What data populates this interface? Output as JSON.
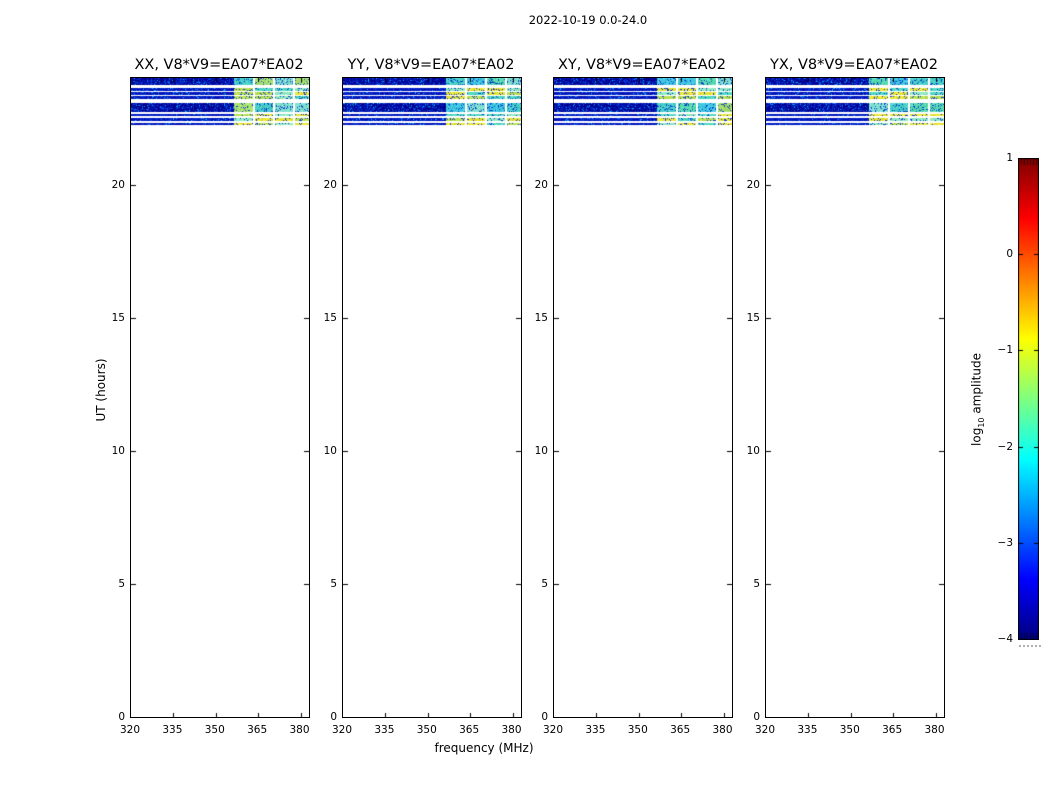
{
  "title": "2022-10-19 0.0-24.0",
  "xlabel": "frequency (MHz)",
  "ylabel": "UT (hours)",
  "colorbar": {
    "label_prefix": "log",
    "label_sub": "10",
    "label_suffix": " amplitude",
    "ticks": [
      "1",
      "0",
      "−1",
      "−2",
      "−3",
      "−4"
    ],
    "tick_values": [
      1,
      0,
      -1,
      -2,
      -3,
      -4
    ],
    "vmin": -4,
    "vmax": 1,
    "colormap": "jet"
  },
  "chart_data": {
    "type": "heatmap",
    "description": "Four dynamic-spectrum (frequency vs UT) waterfall panels of visibility amplitude for baseline V8*V9=EA07*EA02, one per polarization product; data present only near UT 22.2-24.0 as horizontal bands; enhanced amplitude patches above ~357 MHz.",
    "panels": [
      {
        "id": "xx",
        "label": "XX, V8*V9=EA07*EA02"
      },
      {
        "id": "yy",
        "label": "YY, V8*V9=EA07*EA02"
      },
      {
        "id": "xy",
        "label": "XY, V8*V9=EA07*EA02"
      },
      {
        "id": "yx",
        "label": "YX, V8*V9=EA07*EA02"
      }
    ],
    "x": {
      "label": "frequency (MHz)",
      "min": 320,
      "max": 383,
      "ticks": [
        320,
        335,
        350,
        365,
        380
      ]
    },
    "y": {
      "label": "UT (hours)",
      "min": 0,
      "max": 24,
      "ticks": [
        0,
        5,
        10,
        15,
        20
      ]
    },
    "color_axis": {
      "label": "log10 amplitude",
      "min": -4,
      "max": 1,
      "ticks": [
        1,
        0,
        -1,
        -2,
        -3,
        -4
      ],
      "colormap": "jet"
    },
    "background_log10_amp_range": [
      -4.0,
      -3.0
    ],
    "enhanced_log10_amp_range": [
      -2.2,
      -1.1
    ],
    "bands": [
      {
        "ut_start": 23.74,
        "ut_end": 24.0,
        "kind": "thick"
      },
      {
        "ut_start": 23.53,
        "ut_end": 23.61,
        "kind": "line"
      },
      {
        "ut_start": 23.36,
        "ut_end": 23.48,
        "kind": "line"
      },
      {
        "ut_start": 23.22,
        "ut_end": 23.31,
        "kind": "line"
      },
      {
        "ut_start": 22.71,
        "ut_end": 23.05,
        "kind": "thick"
      },
      {
        "ut_start": 22.56,
        "ut_end": 22.64,
        "kind": "line"
      },
      {
        "ut_start": 22.38,
        "ut_end": 22.51,
        "kind": "line"
      },
      {
        "ut_start": 22.23,
        "ut_end": 22.32,
        "kind": "line"
      }
    ],
    "enhanced_blocks_mhz": [
      [
        356.6,
        363.2
      ],
      [
        363.9,
        370.3
      ],
      [
        371.0,
        377.4
      ],
      [
        378.1,
        383.0
      ]
    ],
    "channel_gap_mhz": [
      356.2,
      363.55,
      370.65,
      377.75
    ],
    "render": {
      "noise_thick": {
        "colors": [
          "#000088",
          "#0010b0",
          "#0028d0",
          "#1048e8",
          "#00a8e8"
        ],
        "weights": [
          0.45,
          0.25,
          0.15,
          0.1,
          0.05
        ]
      },
      "noise_line": {
        "colors": [
          "#0008b0",
          "#0020cc",
          "#0038dd",
          "#10a0e0"
        ],
        "weights": [
          0.45,
          0.35,
          0.13,
          0.07
        ]
      },
      "block_thick_palette": [
        "#48d0c8",
        "#58dcb0",
        "#80e0d0",
        "#a8e070",
        "#40c8e0"
      ],
      "block_line_palette": [
        "#e8e434",
        "#50d8c0",
        "#b8e050",
        "#e8e434",
        "#90e8c0"
      ],
      "block_jitter_color": "#1040cc",
      "panel_seeds": [
        101,
        202,
        303,
        404
      ]
    }
  }
}
